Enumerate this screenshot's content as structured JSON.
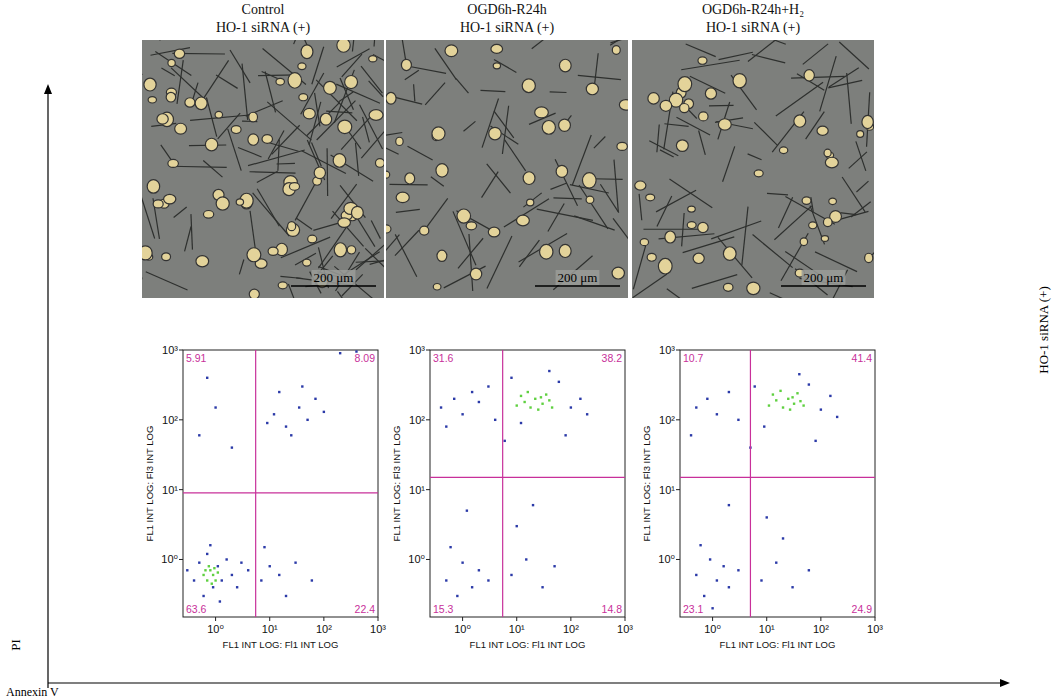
{
  "figure": {
    "panels": [
      {
        "title": [
          "Control",
          "HO-1 siRNA (+)"
        ],
        "scale_bar": "200 μm"
      },
      {
        "title": [
          "OGD6h-R24h",
          "HO-1 siRNA (+)"
        ],
        "scale_bar": "200 μm"
      },
      {
        "title": [
          "OGD6h-R24h+H₂",
          "HO-1 siRNA (+)"
        ],
        "scale_bar": "200 μm"
      }
    ],
    "row_label": "HO-1 siRNA (+)",
    "y_title": "PI",
    "x_title": "Annexin V"
  },
  "chart_data": [
    {
      "type": "scatter",
      "x_label": "FL1 INT LOG: Fl1 INT LOG",
      "y_label": "FL1 INT LOG: Fl3 INT LOG",
      "log": true,
      "xlim": [
        0.25,
        1000
      ],
      "ylim": [
        0.15,
        1000
      ],
      "xticks": [
        {
          "value": 1,
          "label": "10⁰"
        },
        {
          "value": 10,
          "label": "10¹"
        },
        {
          "value": 100,
          "label": "10²"
        },
        {
          "value": 1000,
          "label": "10³"
        }
      ],
      "yticks": [
        {
          "value": 1,
          "label": "10⁰"
        },
        {
          "value": 10,
          "label": "10¹"
        },
        {
          "value": 100,
          "label": "10²"
        },
        {
          "value": 1000,
          "label": "10³"
        }
      ],
      "quadrant_gates": {
        "x": 5.5,
        "y": 9
      },
      "quadrant_values": {
        "upper_left": 5.91,
        "upper_right": 8.09,
        "lower_left": 63.6,
        "lower_right": 22.4
      },
      "data_labels": true,
      "series": [
        {
          "color": "#2b3aa8",
          "x": [
            0.4,
            0.5,
            0.6,
            0.7,
            0.9,
            1.1,
            1.3,
            1.6,
            2,
            2.5,
            3,
            0.3,
            0.8,
            1.2,
            4,
            7,
            10,
            15,
            30,
            60,
            8,
            20,
            12,
            20,
            35,
            50,
            70,
            15,
            100,
            25,
            40,
            9,
            0.5,
            1,
            2,
            0.7,
            200,
            400
          ],
          "values": [
            0.5,
            0.9,
            0.3,
            1.2,
            0.4,
            0.8,
            0.5,
            1.0,
            0.6,
            0.4,
            0.9,
            0.7,
            1.6,
            0.25,
            0.7,
            0.5,
            0.8,
            0.6,
            0.9,
            0.5,
            1.5,
            0.3,
            120,
            80,
            150,
            100,
            200,
            250,
            130,
            60,
            300,
            90,
            60,
            150,
            40,
            400,
            900,
            950
          ]
        },
        {
          "color": "#5fd040",
          "x": [
            0.6,
            0.7,
            0.8,
            0.9,
            1.0,
            0.75,
            0.85,
            1.1,
            0.65,
            0.95
          ],
          "values": [
            0.6,
            0.5,
            0.7,
            0.6,
            0.5,
            0.8,
            0.45,
            0.65,
            0.7,
            0.75
          ]
        }
      ]
    },
    {
      "type": "scatter",
      "x_label": "FL1 INT LOG: Fl1 INT LOG",
      "y_label": "FL1 INT LOG: Fl3 INT LOG",
      "log": true,
      "xlim": [
        0.25,
        1000
      ],
      "ylim": [
        0.15,
        1000
      ],
      "xticks": [
        {
          "value": 1,
          "label": "10⁰"
        },
        {
          "value": 10,
          "label": "10¹"
        },
        {
          "value": 100,
          "label": "10²"
        },
        {
          "value": 1000,
          "label": "10³"
        }
      ],
      "yticks": [
        {
          "value": 1,
          "label": "10⁰"
        },
        {
          "value": 10,
          "label": "10¹"
        },
        {
          "value": 100,
          "label": "10²"
        },
        {
          "value": 1000,
          "label": "10³"
        }
      ],
      "quadrant_gates": {
        "x": 5.5,
        "y": 15
      },
      "quadrant_values": {
        "upper_left": 31.6,
        "upper_right": 38.2,
        "lower_left": 15.3,
        "lower_right": 14.8
      },
      "data_labels": true,
      "series": [
        {
          "color": "#2b3aa8",
          "x": [
            0.4,
            0.7,
            1,
            1.5,
            2,
            3,
            4,
            0.5,
            8,
            12,
            60,
            100,
            150,
            200,
            80,
            6,
            40,
            0.5,
            0.8,
            1,
            1.5,
            2,
            0.6,
            3,
            8,
            15,
            30,
            50,
            10,
            1.2,
            20
          ],
          "values": [
            150,
            200,
            120,
            250,
            180,
            300,
            100,
            80,
            400,
            90,
            350,
            150,
            200,
            120,
            60,
            50,
            500,
            0.5,
            0.3,
            0.9,
            0.4,
            0.7,
            1.5,
            0.5,
            0.6,
            1,
            0.4,
            0.8,
            3,
            5,
            6
          ]
        },
        {
          "color": "#5fd040",
          "x": [
            10,
            14,
            18,
            22,
            30,
            40,
            12,
            25,
            35,
            45,
            16,
            28
          ],
          "values": [
            160,
            180,
            150,
            200,
            170,
            190,
            220,
            140,
            230,
            150,
            250,
            210
          ]
        }
      ]
    },
    {
      "type": "scatter",
      "x_label": "FL1 INT LOG: Fl1 INT LOG",
      "y_label": "FL1 INT LOG: Fl3 INT LOG",
      "log": true,
      "xlim": [
        0.25,
        1000
      ],
      "ylim": [
        0.15,
        1000
      ],
      "xticks": [
        {
          "value": 1,
          "label": "10⁰"
        },
        {
          "value": 10,
          "label": "10¹"
        },
        {
          "value": 100,
          "label": "10²"
        },
        {
          "value": 1000,
          "label": "10³"
        }
      ],
      "yticks": [
        {
          "value": 1,
          "label": "10⁰"
        },
        {
          "value": 10,
          "label": "10¹"
        },
        {
          "value": 100,
          "label": "10²"
        },
        {
          "value": 1000,
          "label": "10³"
        }
      ],
      "quadrant_gates": {
        "x": 5,
        "y": 15
      },
      "quadrant_values": {
        "upper_left": 10.7,
        "upper_right": 41.4,
        "lower_left": 23.1,
        "lower_right": 24.9
      },
      "data_labels": true,
      "series": [
        {
          "color": "#2b3aa8",
          "x": [
            0.5,
            0.8,
            1.2,
            2,
            3,
            0.4,
            6,
            9,
            60,
            100,
            150,
            200,
            80,
            40,
            5,
            0.5,
            0.7,
            0.9,
            1.2,
            1.6,
            2,
            0.6,
            1,
            3,
            8,
            15,
            30,
            60,
            20,
            10,
            2
          ],
          "values": [
            150,
            200,
            120,
            250,
            100,
            60,
            300,
            80,
            320,
            140,
            220,
            110,
            50,
            450,
            40,
            0.6,
            0.3,
            1,
            0.5,
            0.8,
            0.4,
            1.6,
            0.2,
            0.7,
            0.5,
            0.9,
            0.4,
            0.7,
            2,
            4,
            6
          ]
        },
        {
          "color": "#5fd040",
          "x": [
            11,
            15,
            20,
            25,
            32,
            42,
            13,
            27,
            37,
            48,
            18,
            30
          ],
          "values": [
            160,
            190,
            150,
            200,
            170,
            185,
            230,
            140,
            240,
            160,
            260,
            210
          ]
        }
      ]
    }
  ]
}
